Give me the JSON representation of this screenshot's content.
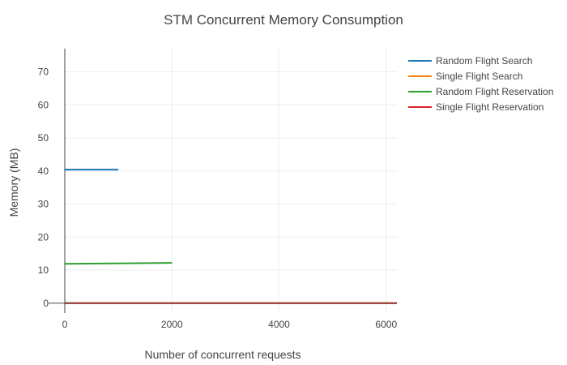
{
  "chart_data": {
    "type": "line",
    "title": "STM Concurrent Memory Consumption",
    "xlabel": "Number of concurrent requests",
    "ylabel": "Memory (MB)",
    "xlim": [
      0,
      6200
    ],
    "ylim": [
      -3,
      77
    ],
    "xticks": [
      0,
      2000,
      4000,
      6000
    ],
    "yticks": [
      0,
      10,
      20,
      30,
      40,
      50,
      60,
      70
    ],
    "grid": true,
    "legend_position": "top-right",
    "series": [
      {
        "name": "Random Flight Search",
        "color": "#1f77b4",
        "x": [
          0,
          1000
        ],
        "y": [
          40.4,
          40.4
        ]
      },
      {
        "name": "Single Flight Search",
        "color": "#ff7f0e",
        "x": [
          0,
          6200
        ],
        "y": [
          0,
          0
        ]
      },
      {
        "name": "Random Flight Reservation",
        "color": "#2ca02c",
        "x": [
          0,
          2000
        ],
        "y": [
          11.9,
          12.2
        ]
      },
      {
        "name": "Single Flight Reservation",
        "color": "#d62728",
        "x": [
          0,
          6200
        ],
        "y": [
          0,
          0
        ]
      }
    ]
  }
}
